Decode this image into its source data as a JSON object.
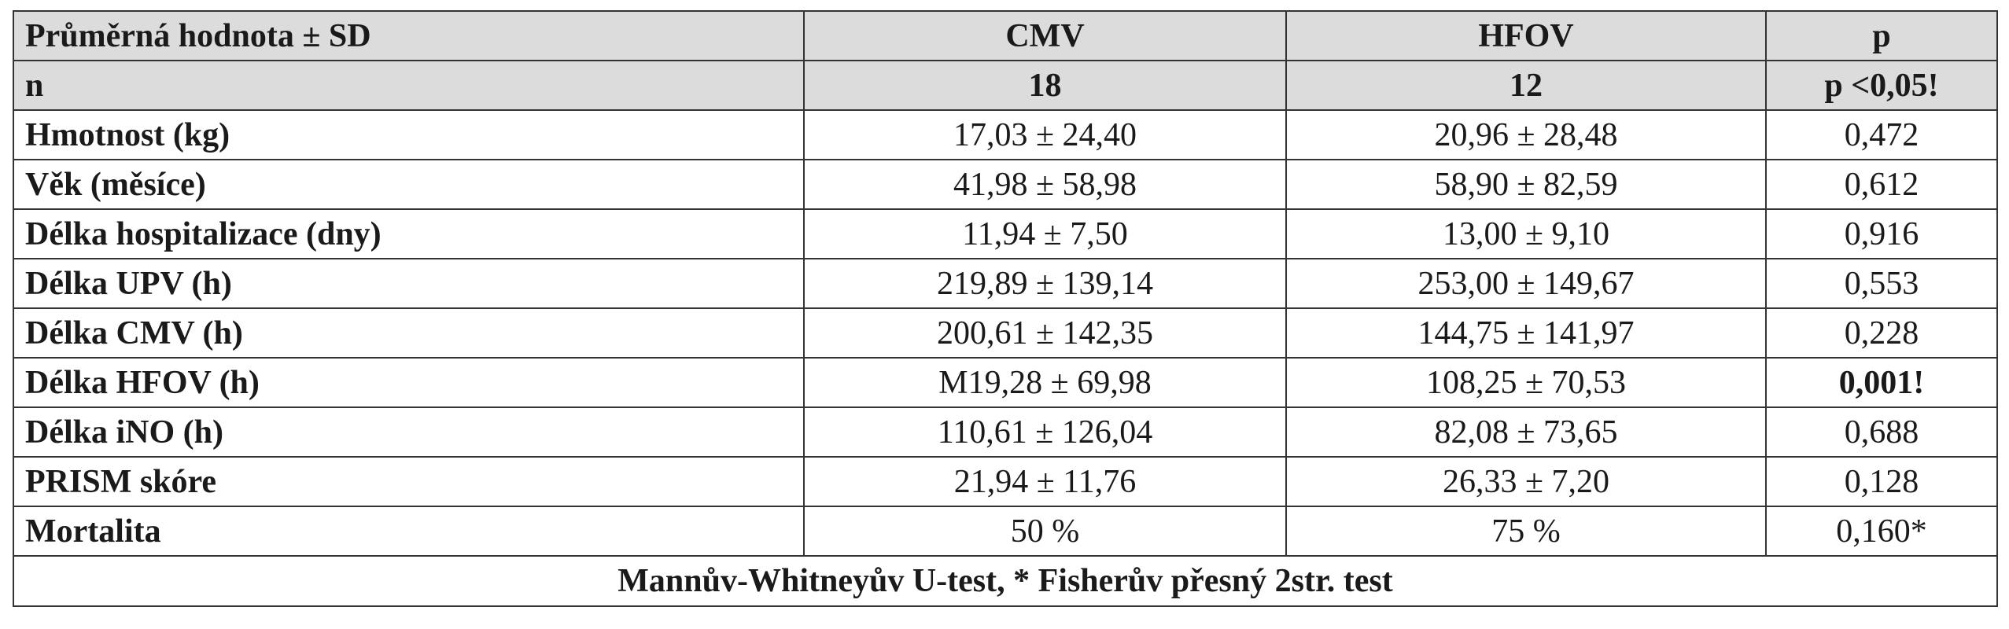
{
  "table": {
    "header": [
      "Průměrná hodnota ± SD",
      "CMV",
      "HFOV",
      "p"
    ],
    "n_row": [
      "n",
      "18",
      "12",
      "p <0,05!"
    ],
    "rows": [
      [
        "Hmotnost (kg)",
        "17,03 ± 24,40",
        "20,96 ± 28,48",
        "0,472"
      ],
      [
        "Věk (měsíce)",
        "41,98 ± 58,98",
        "58,90 ± 82,59",
        "0,612"
      ],
      [
        "Délka hospitalizace (dny)",
        "11,94 ± 7,50",
        "13,00 ± 9,10",
        "0,916"
      ],
      [
        "Délka UPV (h)",
        "219,89 ± 139,14",
        "253,00 ± 149,67",
        "0,553"
      ],
      [
        "Délka CMV (h)",
        "200,61 ± 142,35",
        "144,75 ± 141,97",
        "0,228"
      ],
      [
        "Délka HFOV (h)",
        "M19,28 ± 69,98",
        "108,25 ± 70,53",
        "0,001!"
      ],
      [
        "Délka iNO (h)",
        "110,61 ± 126,04",
        "82,08 ± 73,65",
        "0,688"
      ],
      [
        "PRISM skóre",
        "21,94 ± 11,76",
        "26,33 ± 7,20",
        "0,128"
      ],
      [
        "Mortalita",
        "50 %",
        "75 %",
        "0,160*"
      ]
    ],
    "footer": "Mannův-Whitneyův U-test, * Fisherův přesný 2str. test"
  }
}
